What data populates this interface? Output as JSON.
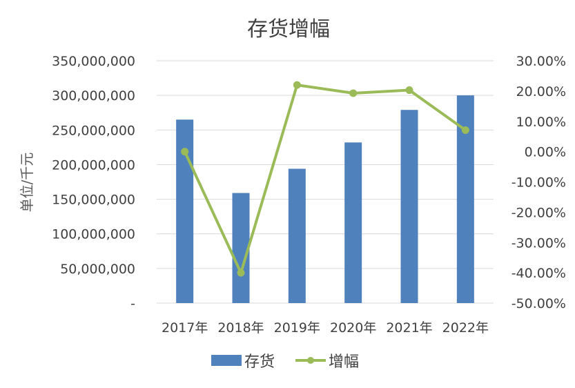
{
  "chart_data": {
    "type": "bar",
    "title": "存货增幅",
    "ylabel": "单位/千元",
    "categories": [
      "2017年",
      "2018年",
      "2019年",
      "2020年",
      "2021年",
      "2022年"
    ],
    "ylim": [
      0,
      350000000
    ],
    "y2lim": [
      -50,
      30
    ],
    "y_ticks": [
      "-",
      "50,000,000",
      "100,000,000",
      "150,000,000",
      "200,000,000",
      "250,000,000",
      "300,000,000",
      "350,000,000"
    ],
    "y2_ticks": [
      "-50.00%",
      "-40.00%",
      "-30.00%",
      "-20.00%",
      "-10.00%",
      "0.00%",
      "10.00%",
      "20.00%",
      "30.00%"
    ],
    "grid": true,
    "legend_position": "bottom",
    "series": [
      {
        "name": "存货",
        "type": "bar",
        "axis": "left",
        "color": "#4f81bd",
        "values": [
          265000000,
          159000000,
          194000000,
          232000000,
          279000000,
          300000000
        ]
      },
      {
        "name": "增幅",
        "type": "line",
        "axis": "right",
        "color": "#9bbb59",
        "values": [
          0.0,
          -40.0,
          22.0,
          19.3,
          20.3,
          7.1
        ]
      }
    ]
  }
}
